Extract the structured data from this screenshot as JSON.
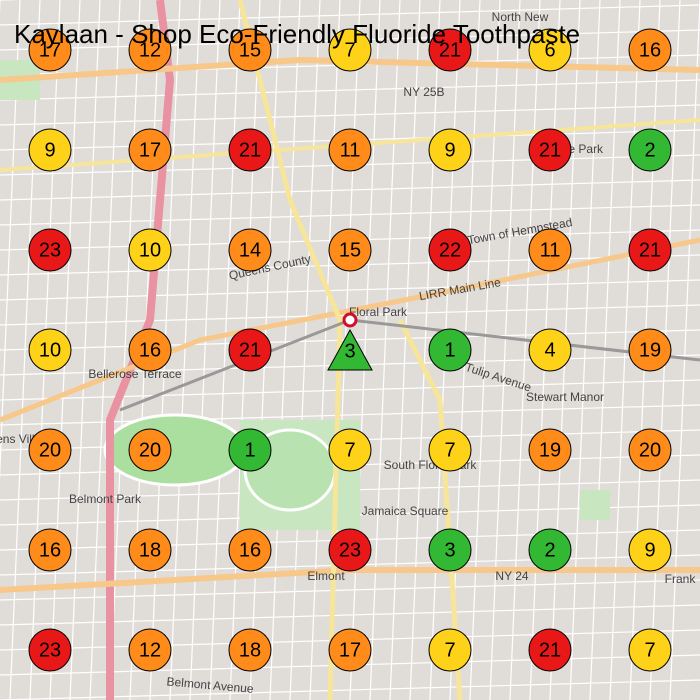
{
  "title": "Kaylaan - Shop Eco-Friendly Fluoride Toothpaste",
  "place_labels": [
    "North New",
    "Hyde Park",
    "Floral Park",
    "Bellerose Terrace",
    "Stewart Manor",
    "South Floral Park",
    "Belmont Park",
    "Elmont",
    "Frank",
    "NY 25B",
    "NY 24",
    "Queens County",
    "Town of Hempstead",
    "LIRR Main Line",
    "Tulip Avenue",
    "Jamaica Square",
    "Belmont Avenue",
    "Queens Village"
  ],
  "markers": [
    {
      "value": 17,
      "color": "#ff8c1a",
      "shape": "circle"
    },
    {
      "value": 12,
      "color": "#ff8c1a",
      "shape": "circle"
    },
    {
      "value": 15,
      "color": "#ff8c1a",
      "shape": "circle"
    },
    {
      "value": 7,
      "color": "#ffd21a",
      "shape": "circle"
    },
    {
      "value": 21,
      "color": "#e81818",
      "shape": "circle"
    },
    {
      "value": 6,
      "color": "#ffd21a",
      "shape": "circle"
    },
    {
      "value": 16,
      "color": "#ff8c1a",
      "shape": "circle"
    },
    {
      "value": 9,
      "color": "#ffd21a",
      "shape": "circle"
    },
    {
      "value": 17,
      "color": "#ff8c1a",
      "shape": "circle"
    },
    {
      "value": 21,
      "color": "#e81818",
      "shape": "circle"
    },
    {
      "value": 11,
      "color": "#ff8c1a",
      "shape": "circle"
    },
    {
      "value": 9,
      "color": "#ffd21a",
      "shape": "circle"
    },
    {
      "value": 21,
      "color": "#e81818",
      "shape": "circle"
    },
    {
      "value": 2,
      "color": "#33b833",
      "shape": "circle"
    },
    {
      "value": 23,
      "color": "#e81818",
      "shape": "circle"
    },
    {
      "value": 10,
      "color": "#ffd21a",
      "shape": "circle"
    },
    {
      "value": 14,
      "color": "#ff8c1a",
      "shape": "circle"
    },
    {
      "value": 15,
      "color": "#ff8c1a",
      "shape": "circle"
    },
    {
      "value": 22,
      "color": "#e81818",
      "shape": "circle"
    },
    {
      "value": 11,
      "color": "#ff8c1a",
      "shape": "circle"
    },
    {
      "value": 21,
      "color": "#e81818",
      "shape": "circle"
    },
    {
      "value": 10,
      "color": "#ffd21a",
      "shape": "circle"
    },
    {
      "value": 16,
      "color": "#ff8c1a",
      "shape": "circle"
    },
    {
      "value": 21,
      "color": "#e81818",
      "shape": "circle"
    },
    {
      "value": 3,
      "color": "#33b833",
      "shape": "triangle"
    },
    {
      "value": 1,
      "color": "#33b833",
      "shape": "circle"
    },
    {
      "value": 4,
      "color": "#ffd21a",
      "shape": "circle"
    },
    {
      "value": 19,
      "color": "#ff8c1a",
      "shape": "circle"
    },
    {
      "value": 20,
      "color": "#ff8c1a",
      "shape": "circle"
    },
    {
      "value": 20,
      "color": "#ff8c1a",
      "shape": "circle"
    },
    {
      "value": 1,
      "color": "#33b833",
      "shape": "circle"
    },
    {
      "value": 7,
      "color": "#ffd21a",
      "shape": "circle"
    },
    {
      "value": 7,
      "color": "#ffd21a",
      "shape": "circle"
    },
    {
      "value": 19,
      "color": "#ff8c1a",
      "shape": "circle"
    },
    {
      "value": 20,
      "color": "#ff8c1a",
      "shape": "circle"
    },
    {
      "value": 16,
      "color": "#ff8c1a",
      "shape": "circle"
    },
    {
      "value": 18,
      "color": "#ff8c1a",
      "shape": "circle"
    },
    {
      "value": 16,
      "color": "#ff8c1a",
      "shape": "circle"
    },
    {
      "value": 23,
      "color": "#e81818",
      "shape": "circle"
    },
    {
      "value": 3,
      "color": "#33b833",
      "shape": "circle"
    },
    {
      "value": 2,
      "color": "#33b833",
      "shape": "circle"
    },
    {
      "value": 9,
      "color": "#ffd21a",
      "shape": "circle"
    },
    {
      "value": 23,
      "color": "#e81818",
      "shape": "circle"
    },
    {
      "value": 12,
      "color": "#ff8c1a",
      "shape": "circle"
    },
    {
      "value": 18,
      "color": "#ff8c1a",
      "shape": "circle"
    },
    {
      "value": 17,
      "color": "#ff8c1a",
      "shape": "circle"
    },
    {
      "value": 7,
      "color": "#ffd21a",
      "shape": "circle"
    },
    {
      "value": 21,
      "color": "#e81818",
      "shape": "circle"
    },
    {
      "value": 7,
      "color": "#ffd21a",
      "shape": "circle"
    }
  ]
}
